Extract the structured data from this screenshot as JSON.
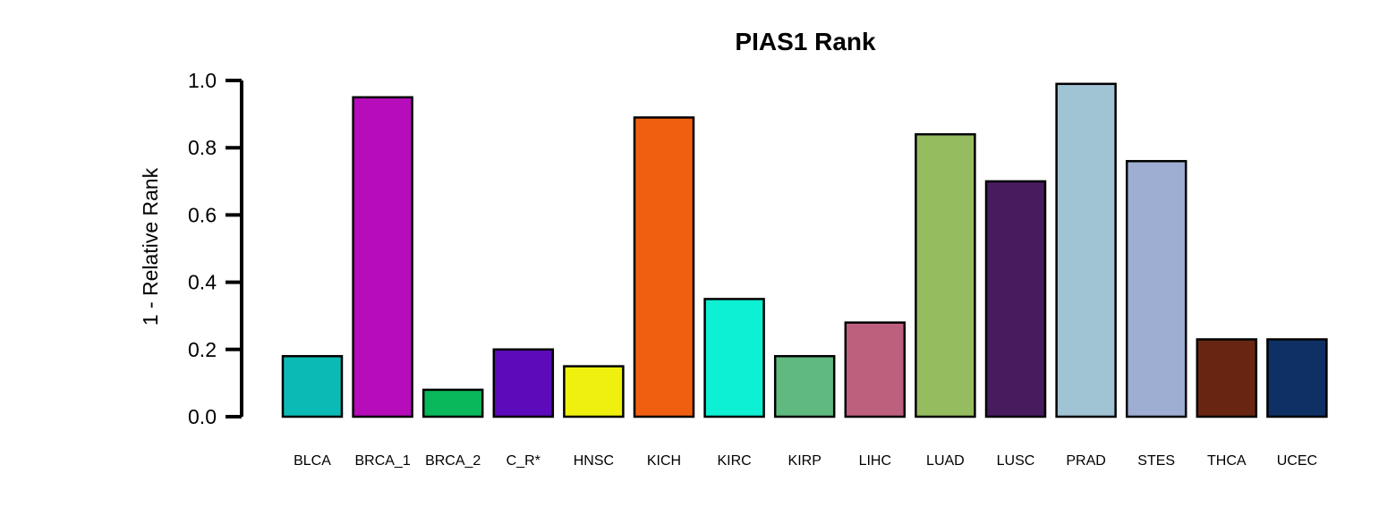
{
  "chart_data": {
    "type": "bar",
    "title": "PIAS1 Rank",
    "xlabel": "",
    "ylabel": "1 - Relative Rank",
    "ylim": [
      0,
      1.0
    ],
    "yticks": [
      0.0,
      0.2,
      0.4,
      0.6,
      0.8,
      1.0
    ],
    "ytick_labels": [
      "0.0",
      "0.2",
      "0.4",
      "0.6",
      "0.8",
      "1.0"
    ],
    "grid": false,
    "legend": "none",
    "categories": [
      "BLCA",
      "BRCA_1",
      "BRCA_2",
      "C_R*",
      "HNSC",
      "KICH",
      "KIRC",
      "KIRP",
      "LIHC",
      "LUAD",
      "LUSC",
      "PRAD",
      "STES",
      "THCA",
      "UCEC"
    ],
    "values": [
      0.18,
      0.95,
      0.08,
      0.2,
      0.15,
      0.89,
      0.35,
      0.18,
      0.28,
      0.84,
      0.7,
      0.99,
      0.76,
      0.23,
      0.23
    ],
    "colors": [
      "#0bbab4",
      "#b60cba",
      "#08b85a",
      "#5d0bba",
      "#eff00d",
      "#f05f10",
      "#0ef0d3",
      "#60ba80",
      "#bc607e",
      "#96bc60",
      "#471b5e",
      "#a0c4d4",
      "#9eaed3",
      "#682612",
      "#0e3064"
    ]
  }
}
